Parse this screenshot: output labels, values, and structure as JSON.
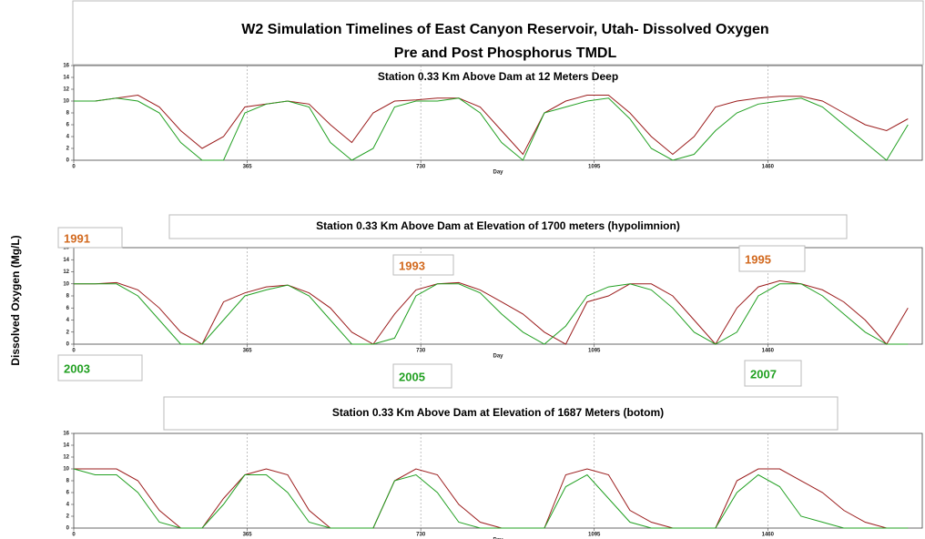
{
  "title": [
    "W2 Simulation Timelines of East Canyon Reservoir, Utah-   Dissolved Oxygen",
    "Pre and Post Phosphorus TMDL"
  ],
  "y_label": "Dissolved Oxygen  (Mg/L)",
  "annotations": [
    {
      "text": "1991",
      "color": "#d2691e"
    },
    {
      "text": "1993",
      "color": "#d2691e"
    },
    {
      "text": "1995",
      "color": "#d2691e"
    },
    {
      "text": "2003",
      "color": "#22a022"
    },
    {
      "text": "2005",
      "color": "#22a022"
    },
    {
      "text": "2007",
      "color": "#22a022"
    }
  ],
  "chart_data": [
    {
      "type": "line",
      "title": "Station 0.33 Km Above Dam at 12 Meters Deep",
      "x_label": "Day",
      "xlim": [
        0,
        1785
      ],
      "ylim": [
        0,
        16
      ],
      "xticks": [
        0,
        365,
        730,
        1095,
        1460
      ],
      "yticks": [
        0,
        2,
        4,
        6,
        8,
        10,
        12,
        14,
        16
      ],
      "grid": true,
      "x": [
        0,
        45,
        90,
        135,
        180,
        225,
        270,
        315,
        360,
        405,
        450,
        495,
        540,
        585,
        630,
        675,
        720,
        765,
        810,
        855,
        900,
        945,
        990,
        1035,
        1080,
        1125,
        1170,
        1215,
        1260,
        1305,
        1350,
        1395,
        1440,
        1485,
        1530,
        1575,
        1620,
        1665,
        1710,
        1755
      ],
      "series": [
        {
          "color": "#9b1c1c",
          "values": [
            10,
            10,
            10.5,
            11,
            9,
            5,
            2,
            4,
            9,
            9.5,
            10,
            9.5,
            6,
            3,
            8,
            10,
            10.2,
            10.5,
            10.5,
            9,
            5,
            1,
            8,
            10,
            11,
            11,
            8,
            4,
            1,
            4,
            9,
            10,
            10.5,
            10.8,
            10.8,
            10,
            8,
            6,
            5,
            7
          ]
        },
        {
          "color": "#22a022",
          "values": [
            10,
            10,
            10.5,
            10,
            8,
            3,
            0,
            0,
            8,
            9.5,
            10,
            9,
            3,
            0,
            2,
            9,
            10,
            10,
            10.5,
            8,
            3,
            0,
            8,
            9,
            10,
            10.5,
            7,
            2,
            0,
            1,
            5,
            8,
            9.5,
            10,
            10.5,
            9,
            6,
            3,
            0,
            6
          ]
        }
      ]
    },
    {
      "type": "line",
      "title": "Station 0.33 Km Above Dam at Elevation of 1700 meters (hypolimnion)",
      "x_label": "Day",
      "xlim": [
        0,
        1785
      ],
      "ylim": [
        0,
        16
      ],
      "xticks": [
        0,
        365,
        730,
        1095,
        1460
      ],
      "yticks": [
        0,
        2,
        4,
        6,
        8,
        10,
        12,
        14,
        16
      ],
      "grid": true,
      "x": [
        0,
        45,
        90,
        135,
        180,
        225,
        270,
        315,
        360,
        405,
        450,
        495,
        540,
        585,
        630,
        675,
        720,
        765,
        810,
        855,
        900,
        945,
        990,
        1035,
        1080,
        1125,
        1170,
        1215,
        1260,
        1305,
        1350,
        1395,
        1440,
        1485,
        1530,
        1575,
        1620,
        1665,
        1710,
        1755
      ],
      "series": [
        {
          "color": "#9b1c1c",
          "values": [
            10,
            10,
            10.2,
            9,
            6,
            2,
            0,
            7,
            8.5,
            9.5,
            9.8,
            8.5,
            6,
            2,
            0,
            5,
            9,
            10,
            10.2,
            9,
            7,
            5,
            2,
            0,
            7,
            8,
            10,
            10,
            8,
            4,
            0,
            6,
            9.5,
            10.5,
            10,
            9,
            7,
            4,
            0,
            6
          ]
        },
        {
          "color": "#22a022",
          "values": [
            10,
            10,
            10,
            8,
            4,
            0,
            0,
            4,
            8,
            9,
            9.8,
            8,
            4,
            0,
            0,
            1,
            8,
            10,
            10,
            8.5,
            5,
            2,
            0,
            3,
            8,
            9.5,
            10,
            9,
            6,
            2,
            0,
            2,
            8,
            10,
            10,
            8,
            5,
            2,
            0,
            0
          ]
        }
      ]
    },
    {
      "type": "line",
      "title": "Station 0.33 Km Above Dam at Elevation of 1687 Meters (botom)",
      "x_label": "Day",
      "xlim": [
        0,
        1785
      ],
      "ylim": [
        0,
        16
      ],
      "xticks": [
        0,
        365,
        730,
        1095,
        1460
      ],
      "yticks": [
        0,
        2,
        4,
        6,
        8,
        10,
        12,
        14,
        16
      ],
      "grid": true,
      "x": [
        0,
        45,
        90,
        135,
        180,
        225,
        270,
        315,
        360,
        405,
        450,
        495,
        540,
        585,
        630,
        675,
        720,
        765,
        810,
        855,
        900,
        945,
        990,
        1035,
        1080,
        1125,
        1170,
        1215,
        1260,
        1305,
        1350,
        1395,
        1440,
        1485,
        1530,
        1575,
        1620,
        1665,
        1710,
        1755
      ],
      "series": [
        {
          "color": "#9b1c1c",
          "values": [
            10,
            10,
            10,
            8,
            3,
            0,
            0,
            5,
            9,
            10,
            9,
            3,
            0,
            0,
            0,
            8,
            10,
            9,
            4,
            1,
            0,
            0,
            0,
            9,
            10,
            9,
            3,
            1,
            0,
            0,
            0,
            8,
            10,
            10,
            8,
            6,
            3,
            1,
            0,
            0
          ]
        },
        {
          "color": "#22a022",
          "values": [
            10,
            9,
            9,
            6,
            1,
            0,
            0,
            4,
            9,
            9,
            6,
            1,
            0,
            0,
            0,
            8,
            9,
            6,
            1,
            0,
            0,
            0,
            0,
            7,
            9,
            5,
            1,
            0,
            0,
            0,
            0,
            6,
            9,
            7,
            2,
            1,
            0,
            0,
            0,
            0
          ]
        }
      ]
    }
  ]
}
